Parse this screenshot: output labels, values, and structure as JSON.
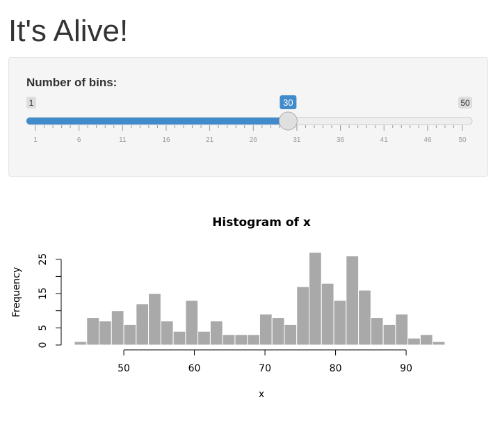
{
  "page": {
    "title": "It's Alive!"
  },
  "slider": {
    "label": "Number of bins:",
    "min": 1,
    "max": 50,
    "value": 30,
    "min_label": "1",
    "max_label": "50",
    "value_label": "30",
    "tick_labels": [
      "1",
      "6",
      "11",
      "16",
      "21",
      "26",
      "31",
      "36",
      "41",
      "46",
      "50"
    ],
    "colors": {
      "fill": "#428bca",
      "badge": "#428bca",
      "tick": "#999999"
    }
  },
  "chart_data": {
    "type": "bar",
    "title": "Histogram of x",
    "xlabel": "x",
    "ylabel": "Frequency",
    "x_ticks": [
      "50",
      "60",
      "70",
      "80",
      "90"
    ],
    "y_ticks": [
      "0",
      "5",
      "15",
      "25"
    ],
    "xlim": [
      43,
      96
    ],
    "ylim": [
      0,
      27
    ],
    "bin_start": 43,
    "bin_width": 1.75,
    "values": [
      1,
      8,
      7,
      10,
      6,
      12,
      15,
      7,
      4,
      13,
      4,
      7,
      3,
      3,
      3,
      9,
      8,
      6,
      17,
      27,
      18,
      13,
      26,
      16,
      8,
      6,
      9,
      2,
      3,
      1
    ],
    "bar_color": "#a9a9a9",
    "grid": false
  }
}
